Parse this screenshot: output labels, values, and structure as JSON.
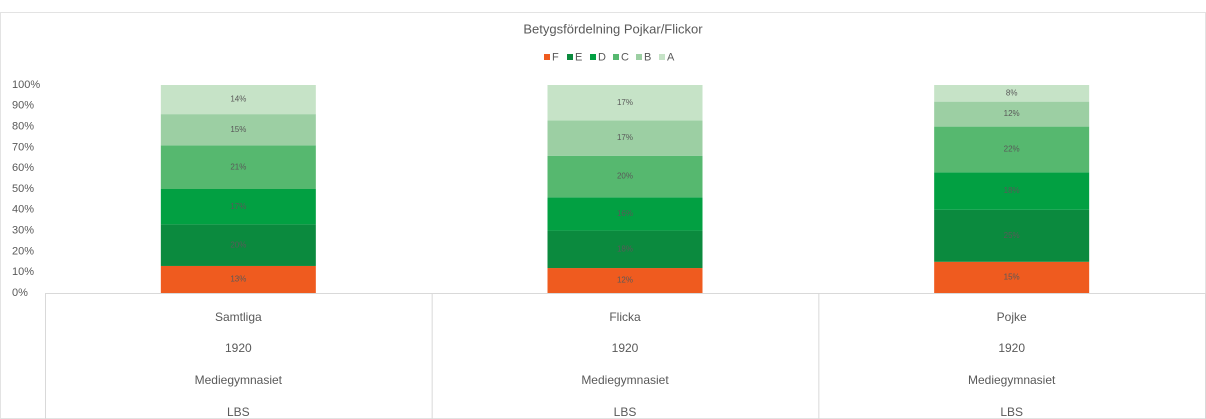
{
  "chart_data": {
    "type": "stacked_bar",
    "title": "Betygsfördelning Pojkar/Flickor",
    "categories": [
      "Samtliga",
      "Flicka",
      "Pojke"
    ],
    "category_levels": [
      [
        "1920",
        "1920",
        "1920"
      ],
      [
        "Mediegymnasiet",
        "Mediegymnasiet",
        "Mediegymnasiet"
      ],
      [
        "LBS",
        "LBS",
        "LBS"
      ]
    ],
    "series": [
      {
        "name": "F",
        "color": "#ef5b1f",
        "values": [
          13,
          12,
          15
        ],
        "value_labels": [
          "13%",
          "12%",
          "15%"
        ]
      },
      {
        "name": "E",
        "color": "#0b8a3e",
        "values": [
          20,
          18,
          25
        ],
        "value_labels": [
          "20%",
          "18%",
          "25%"
        ]
      },
      {
        "name": "D",
        "color": "#02a042",
        "values": [
          17,
          16,
          18
        ],
        "value_labels": [
          "17%",
          "16%",
          "18%"
        ]
      },
      {
        "name": "C",
        "color": "#56b86f",
        "values": [
          21,
          20,
          22
        ],
        "value_labels": [
          "21%",
          "20%",
          "22%"
        ]
      },
      {
        "name": "B",
        "color": "#9ccfa3",
        "values": [
          15,
          17,
          12
        ],
        "value_labels": [
          "15%",
          "17%",
          "12%"
        ]
      },
      {
        "name": "A",
        "color": "#c6e3c7",
        "values": [
          14,
          17,
          8
        ],
        "value_labels": [
          "14%",
          "17%",
          "8%"
        ]
      }
    ],
    "ylim": [
      0,
      100
    ],
    "yticks": [
      {
        "value": 0,
        "label": "0%"
      },
      {
        "value": 10,
        "label": "10%"
      },
      {
        "value": 20,
        "label": "20%"
      },
      {
        "value": 30,
        "label": "30%"
      },
      {
        "value": 40,
        "label": "40%"
      },
      {
        "value": 50,
        "label": "50%"
      },
      {
        "value": 60,
        "label": "60%"
      },
      {
        "value": 70,
        "label": "70%"
      },
      {
        "value": 80,
        "label": "80%"
      },
      {
        "value": 90,
        "label": "90%"
      },
      {
        "value": 100,
        "label": "100%"
      }
    ],
    "legend": "top"
  }
}
